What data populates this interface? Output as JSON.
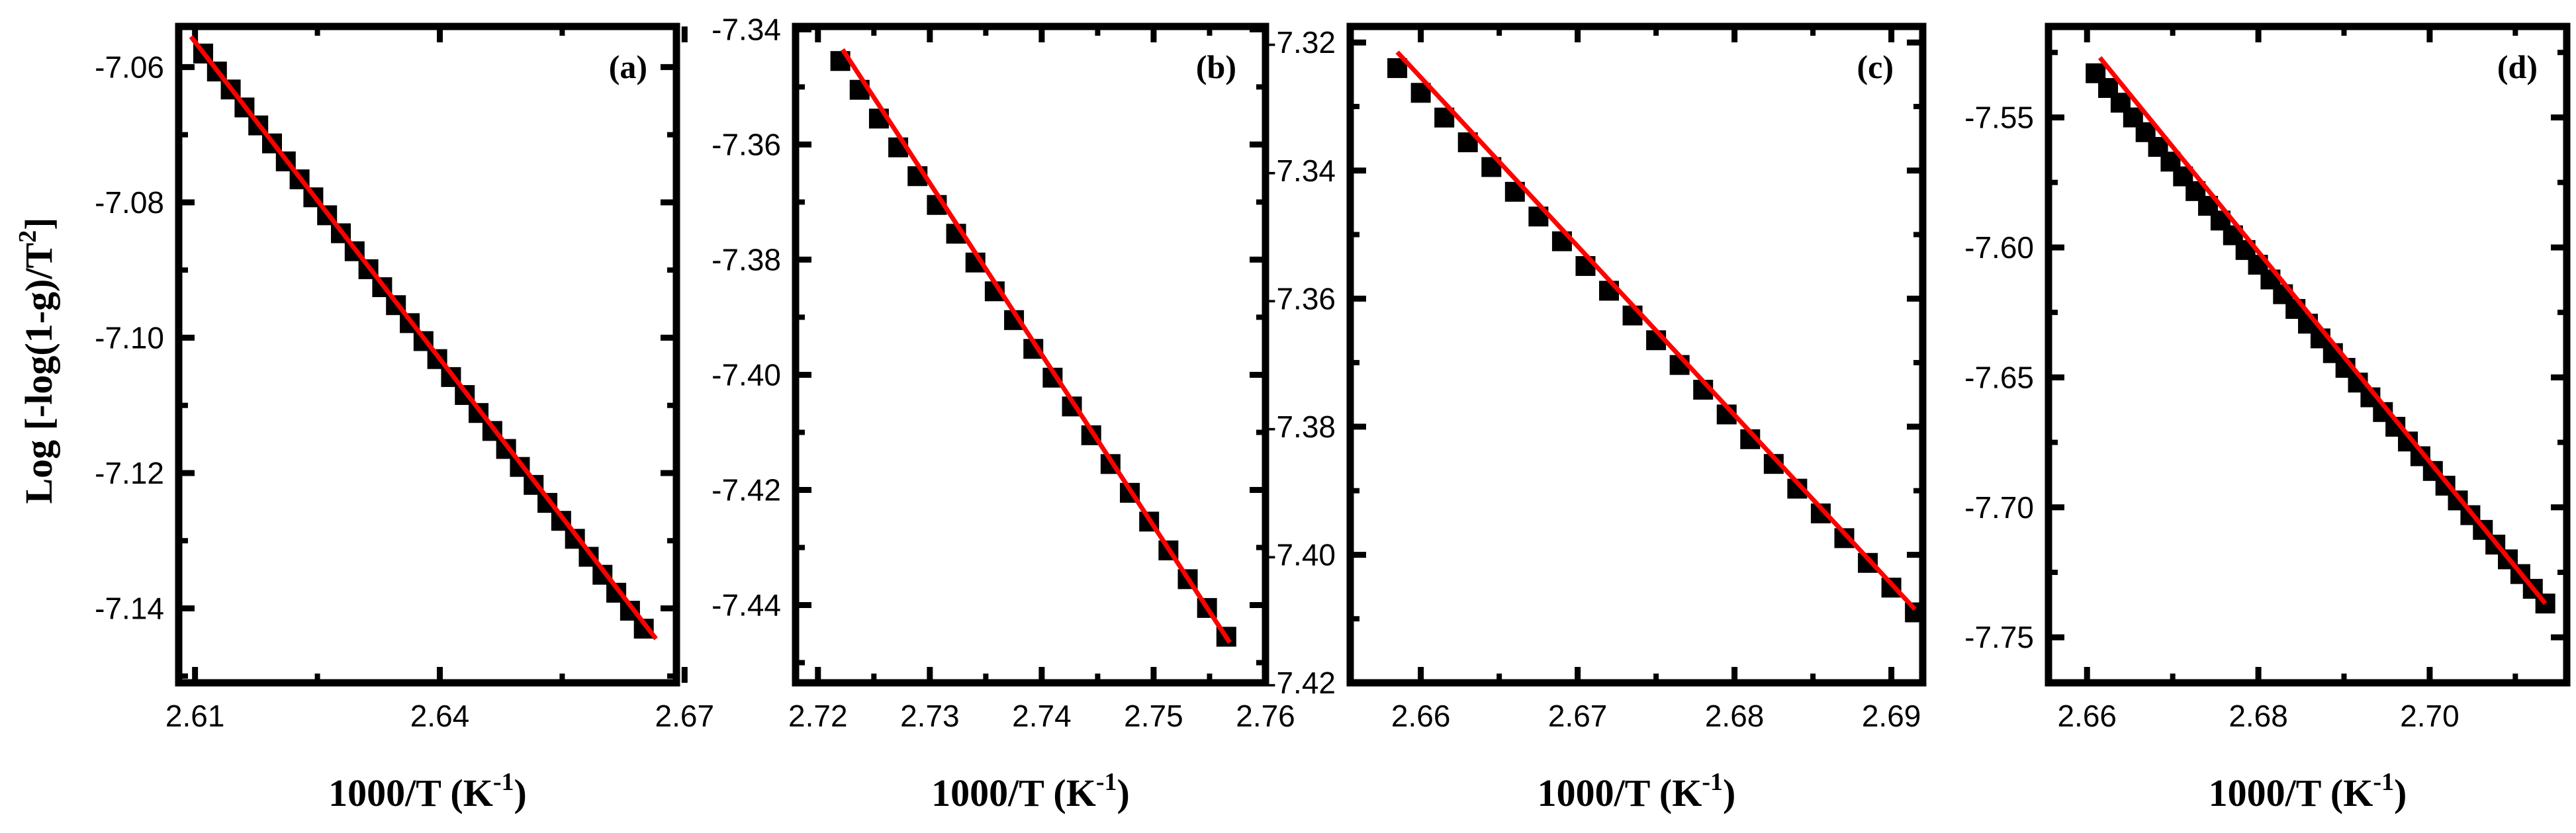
{
  "ylabel": "Log [-log(1-g)/T",
  "ylabel_sup": "2",
  "ylabel_end": "]",
  "chart_data": [
    {
      "type": "scatter",
      "panel": "(a)",
      "xlabel": "1000/T (K",
      "xlabel_sup": "-1",
      "xlabel_end": ")",
      "xlim": [
        2.608,
        2.669
      ],
      "ylim": [
        -7.151,
        -7.054
      ],
      "xticks": [
        2.61,
        2.64,
        2.67
      ],
      "xtick_labels": [
        "2.61",
        "2.64",
        "2.67"
      ],
      "yticks": [
        -7.06,
        -7.08,
        -7.1,
        -7.12,
        -7.14
      ],
      "ytick_labels": [
        "-7.06",
        "-7.08",
        "-7.10",
        "-7.12",
        "-7.14"
      ],
      "x_start": 2.611,
      "x_end": 2.665,
      "n_points": 33,
      "y_start": -7.058,
      "y_end": -7.143,
      "fit": {
        "x": [
          2.6095,
          2.6665
        ],
        "y": [
          -7.0555,
          -7.1445
        ]
      }
    },
    {
      "type": "scatter",
      "panel": "(b)",
      "xlabel": "1000/T (K",
      "xlabel_sup": "-1",
      "xlabel_end": ")",
      "xlim": [
        2.718,
        2.76
      ],
      "ylim": [
        -7.4535,
        -7.3395
      ],
      "xticks": [
        2.72,
        2.73,
        2.74,
        2.75,
        2.76
      ],
      "xtick_labels": [
        "2.72",
        "2.73",
        "2.74",
        "2.75",
        "2.76"
      ],
      "yticks": [
        -7.34,
        -7.36,
        -7.38,
        -7.4,
        -7.42,
        -7.44
      ],
      "ytick_labels": [
        "-7.34",
        "-7.36",
        "-7.38",
        "-7.40",
        "-7.42",
        "-7.44"
      ],
      "x_start": 2.722,
      "x_end": 2.7565,
      "n_points": 21,
      "y_start": -7.3455,
      "y_end": -7.4455,
      "fit": {
        "x": [
          2.7222,
          2.7568
        ],
        "y": [
          -7.3435,
          -7.4465
        ]
      }
    },
    {
      "type": "scatter",
      "panel": "(c)",
      "xlabel": "1000/T (K",
      "xlabel_sup": "-1",
      "xlabel_end": ")",
      "xlim": [
        2.6555,
        2.692
      ],
      "ylim": [
        -7.42,
        -7.3175
      ],
      "xticks": [
        2.66,
        2.67,
        2.68,
        2.69
      ],
      "xtick_labels": [
        "2.66",
        "2.67",
        "2.68",
        "2.69"
      ],
      "yticks": [
        -7.32,
        -7.34,
        -7.36,
        -7.38,
        -7.4,
        -7.42
      ],
      "ytick_labels": [
        "-7.32",
        "-7.34",
        "-7.36",
        "-7.38",
        "-7.40",
        "-7.42"
      ],
      "x_start": 2.6585,
      "x_end": 2.6915,
      "n_points": 23,
      "y_start": -7.324,
      "y_end": -7.409,
      "fit": {
        "x": [
          2.6585,
          2.6915
        ],
        "y": [
          -7.3215,
          -7.4085
        ]
      }
    },
    {
      "type": "scatter",
      "panel": "(d)",
      "xlabel": "1000/T (K",
      "xlabel_sup": "-1",
      "xlabel_end": ")",
      "xlim": [
        2.6555,
        2.716
      ],
      "ylim": [
        -7.7675,
        -7.515
      ],
      "xticks": [
        2.66,
        2.68,
        2.7
      ],
      "xtick_labels": [
        "2.66",
        "2.68",
        "2.70"
      ],
      "yticks": [
        -7.55,
        -7.6,
        -7.65,
        -7.7,
        -7.75
      ],
      "ytick_labels": [
        "-7.55",
        "-7.60",
        "-7.65",
        "-7.70",
        "-7.75"
      ],
      "x_start": 2.661,
      "x_end": 2.7135,
      "n_points": 37,
      "y_start": -7.533,
      "y_end": -7.737,
      "fit": {
        "x": [
          2.6615,
          2.7135
        ],
        "y": [
          -7.527,
          -7.737
        ]
      }
    }
  ]
}
